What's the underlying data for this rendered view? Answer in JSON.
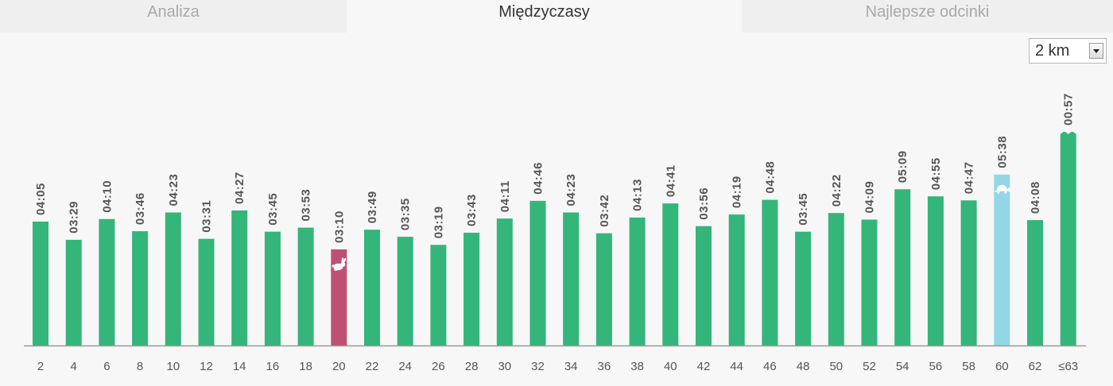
{
  "tabs": [
    {
      "label": "Analiza",
      "active": false
    },
    {
      "label": "Międzyczasy",
      "active": true
    },
    {
      "label": "Najlepsze odcinki",
      "active": false
    }
  ],
  "distance_select": {
    "value": "2 km"
  },
  "colors": {
    "bar": "#34b57a",
    "fastest": "#bf5074",
    "slowest": "#93d6e6",
    "axis": "#999999"
  },
  "chart_data": {
    "type": "bar",
    "categories": [
      "2",
      "4",
      "6",
      "8",
      "10",
      "12",
      "14",
      "16",
      "18",
      "20",
      "22",
      "24",
      "26",
      "28",
      "30",
      "32",
      "34",
      "36",
      "38",
      "40",
      "42",
      "44",
      "46",
      "48",
      "50",
      "52",
      "54",
      "56",
      "58",
      "60",
      "62",
      "≤63"
    ],
    "values": [
      245,
      209,
      250,
      226,
      263,
      211,
      267,
      225,
      233,
      190,
      229,
      215,
      199,
      223,
      251,
      286,
      263,
      222,
      253,
      281,
      236,
      259,
      288,
      225,
      262,
      249,
      309,
      295,
      287,
      338,
      248,
      57
    ],
    "value_labels": [
      "04:05",
      "03:29",
      "04:10",
      "03:46",
      "04:23",
      "03:31",
      "04:27",
      "03:45",
      "03:53",
      "03:10",
      "03:49",
      "03:35",
      "03:19",
      "03:43",
      "04:11",
      "04:46",
      "04:23",
      "03:42",
      "04:13",
      "04:41",
      "03:56",
      "04:19",
      "04:48",
      "03:45",
      "04:22",
      "04:09",
      "05:09",
      "04:55",
      "04:47",
      "05:38",
      "04:08",
      "00:57"
    ],
    "ylabel": "",
    "xlabel": "",
    "ylim": [
      0,
      420
    ],
    "highlights": {
      "fastest_index": 9,
      "slowest_index": 29,
      "truncated_index": 31
    },
    "icons": {
      "fastest": "rabbit-icon",
      "slowest": "turtle-icon"
    }
  }
}
